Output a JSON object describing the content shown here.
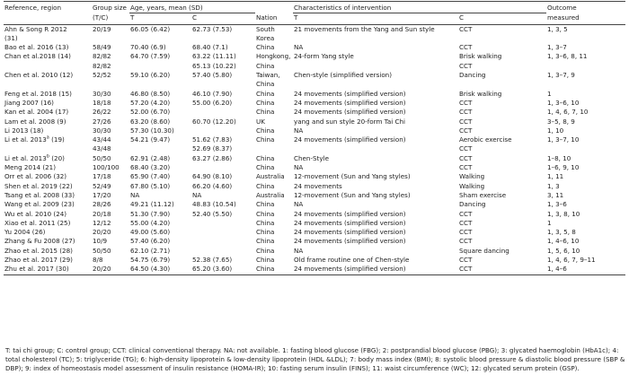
{
  "headers": {
    "reference": "Reference, region",
    "group_size": "Group size",
    "group_size_tc": "(T/C)",
    "age": "Age, years, mean (SD)",
    "t": "T",
    "c": "C",
    "nation": "Nation",
    "intervention": "Characteristics of intervention",
    "it": "T",
    "ic": "C",
    "outcome": "Outcome",
    "outcome2": "measured"
  },
  "rows": [
    {
      "ref": "Ahn & Song R 2012",
      "size": "20/19",
      "t_age": "66.05 (6.42)",
      "c_age": "62.73 (7.53)",
      "nation": "South",
      "int_t": "21 movements from the Yang and Sun style",
      "int_c": "CCT",
      "outcome": "1, 3, 5"
    },
    {
      "ref": "(31)",
      "size": "",
      "t_age": "",
      "c_age": "",
      "nation": "Korea",
      "int_t": "",
      "int_c": "",
      "outcome": ""
    },
    {
      "ref": "Bao et al. 2016 (13)",
      "size": "58/49",
      "t_age": "70.40 (6.9)",
      "c_age": "68.40 (7.1)",
      "nation": "China",
      "int_t": "NA",
      "int_c": "CCT",
      "outcome": "1, 3–7"
    },
    {
      "ref": "Chan et al.2018 (14)",
      "size": "82/82",
      "t_age": "64.70 (7.59)",
      "c_age": "63.22 (11.11)",
      "nation": "Hongkong,",
      "int_t": "24-form Yang style",
      "int_c": "Brisk walking",
      "outcome": "1, 3–6, 8, 11"
    },
    {
      "ref": "",
      "size": "82/82",
      "t_age": "",
      "c_age": "65.13 (10.22)",
      "nation": "China",
      "int_t": "",
      "int_c": "CCT",
      "outcome": ""
    },
    {
      "ref": "Chen et al. 2010 (12)",
      "size": "52/52",
      "t_age": "59.10 (6.20)",
      "c_age": "57.40 (5.80)",
      "nation": "Taiwan,",
      "int_t": "Chen-style (simplified version)",
      "int_c": "Dancing",
      "outcome": "1, 3–7, 9"
    },
    {
      "ref": "",
      "size": "",
      "t_age": "",
      "c_age": "",
      "nation": "China",
      "int_t": "",
      "int_c": "",
      "outcome": ""
    },
    {
      "ref": "Feng et al. 2018 (15)",
      "size": "30/30",
      "t_age": "46.80 (8.50)",
      "c_age": "46.10 (7.90)",
      "nation": "China",
      "int_t": "24 movements (simplified version)",
      "int_c": "Brisk walking",
      "outcome": "1"
    },
    {
      "ref": "Jiang 2007 (16)",
      "size": "18/18",
      "t_age": "57.20 (4.20)",
      "c_age": "55.00 (6.20)",
      "nation": "China",
      "int_t": "24 movements (simplified version)",
      "int_c": "CCT",
      "outcome": "1, 3–6, 10"
    },
    {
      "ref": "Kan et al. 2004 (17)",
      "size": "26/22",
      "t_age": "52.00 (6.70)",
      "c_age": "",
      "nation": "China",
      "int_t": "24 movements (simplified version)",
      "int_c": "CCT",
      "outcome": "1, 4, 6, 7, 10"
    },
    {
      "ref": "Lam et al. 2008 (9)",
      "size": "27/26",
      "t_age": "63.20 (8.60)",
      "c_age": "60.70 (12.20)",
      "nation": "UK",
      "int_t": "yang and sun style 20-form Tai Chi",
      "int_c": "CCT",
      "outcome": "3–5, 8, 9"
    },
    {
      "ref": "Li 2013 (18)",
      "size": "30/30",
      "t_age": "57.30 (10.30)",
      "c_age": "",
      "nation": "China",
      "int_t": "NA",
      "int_c": "CCT",
      "outcome": "1, 10"
    },
    {
      "ref": "Li et al. 2013",
      "sup": "a",
      "ref_tail": " (19)",
      "size": "43/44",
      "t_age": "54.21 (9.47)",
      "c_age": "51.62 (7.83)",
      "nation": "China",
      "int_t": "24 movements (simplified version)",
      "int_c": "Aerobic exercise",
      "outcome": "1, 3–7, 10"
    },
    {
      "ref": "",
      "size": "43/48",
      "t_age": "",
      "c_age": "52.69 (8.37)",
      "nation": "",
      "int_t": "",
      "int_c": "CCT",
      "outcome": ""
    },
    {
      "ref": "Li et al. 2013",
      "sup": "b",
      "ref_tail": " (20)",
      "size": "50/50",
      "t_age": "62.91 (2.48)",
      "c_age": "63.27 (2.86)",
      "nation": "China",
      "int_t": "Chen-Style",
      "int_c": "CCT",
      "outcome": "1–8, 10"
    },
    {
      "ref": "Meng 2014 (21)",
      "size": "100/100",
      "t_age": "68.40 (3.20)",
      "c_age": "",
      "nation": "China",
      "int_t": "NA",
      "int_c": "CCT",
      "outcome": "1–6, 9, 10"
    },
    {
      "ref": "Orr et al. 2006 (32)",
      "size": "17/18",
      "t_age": "65.90 (7.40)",
      "c_age": "64.90 (8.10)",
      "nation": "Australia",
      "int_t": "12-movement (Sun and Yang styles)",
      "int_c": "Walking",
      "outcome": "1, 11"
    },
    {
      "ref": "Shen et al. 2019 (22)",
      "size": "52/49",
      "t_age": "67.80 (5.10)",
      "c_age": "66.20 (4.60)",
      "nation": "China",
      "int_t": "24 movements",
      "int_c": "Walking",
      "outcome": "1, 3"
    },
    {
      "ref": "Tsang et al. 2008 (33)",
      "size": "17/20",
      "t_age": "NA",
      "c_age": "NA",
      "nation": "Australia",
      "int_t": "12-movement (Sun and Yang styles)",
      "int_c": "Sham exercise",
      "outcome": "3, 11"
    },
    {
      "ref": "Wang et al. 2009 (23)",
      "size": "28/26",
      "t_age": "49.21 (11.12)",
      "c_age": "48.83 (10.54)",
      "nation": "China",
      "int_t": "NA",
      "int_c": "Dancing",
      "outcome": "1, 3–6"
    },
    {
      "ref": "Wu et al. 2010 (24)",
      "size": "20/18",
      "t_age": "51.30 (7.90)",
      "c_age": "52.40 (5.50)",
      "nation": "China",
      "int_t": "24 movements (simplified version)",
      "int_c": "CCT",
      "outcome": "1, 3, 8, 10"
    },
    {
      "ref": "Xiao et al. 2011 (25)",
      "size": "12/12",
      "t_age": "55.00 (4.20)",
      "c_age": "",
      "nation": "China",
      "int_t": "24 movements (simplified version)",
      "int_c": "CCT",
      "outcome": "1"
    },
    {
      "ref": "Yu 2004 (26)",
      "size": "20/20",
      "t_age": "49.00 (5.60)",
      "c_age": "",
      "nation": "China",
      "int_t": "24 movements (simplified version)",
      "int_c": "CCT",
      "outcome": "1, 3, 5, 8"
    },
    {
      "ref": "Zhang & Fu 2008 (27)",
      "size": "10/9",
      "t_age": "57.40 (6.20)",
      "c_age": "",
      "nation": "China",
      "int_t": "24 movements (simplified version)",
      "int_c": "CCT",
      "outcome": "1, 4–6, 10"
    },
    {
      "ref": "Zhao et al. 2015 (28)",
      "size": "50/50",
      "t_age": "62.10 (2.71)",
      "c_age": "",
      "nation": "China",
      "int_t": "NA",
      "int_c": "Square dancing",
      "outcome": "1, 5, 6, 10"
    },
    {
      "ref": "Zhao et al. 2017 (29)",
      "size": "8/8",
      "t_age": "54.75 (6.79)",
      "c_age": "52.38 (7.65)",
      "nation": "China",
      "int_t": "Old frame routine one of Chen-style",
      "int_c": "CCT",
      "outcome": "1, 4, 6, 7, 9–11"
    },
    {
      "ref": "Zhu et al. 2017 (30)",
      "size": "20/20",
      "t_age": "64.50 (4.30)",
      "c_age": "65.20 (3.60)",
      "nation": "China",
      "int_t": "24 movements (simplified version)",
      "int_c": "CCT",
      "outcome": "1, 4–6"
    }
  ],
  "footnote": "T: tai chi group; C: control group; CCT: clinical conventional therapy. NA: not available. 1: fasting blood glucose (FBG); 2: postprandial blood glucose (PBG); 3: glycated haemoglobin (HbA1c); 4: total cholesterol (TC); 5: triglyceride (TG); 6: high-density lipoprotein & low-density lipoprotein (HDL &LDL); 7: body mass index (BMI); 8: systolic blood pressure & diastolic blood pressure (SBP & DBP); 9: index of homeostasis model assessment of insulin resistance (HOMA-IR); 10: fasting serum insulin (FINS); 11: waist circumference (WC); 12: glycated serum protein (GSP)."
}
